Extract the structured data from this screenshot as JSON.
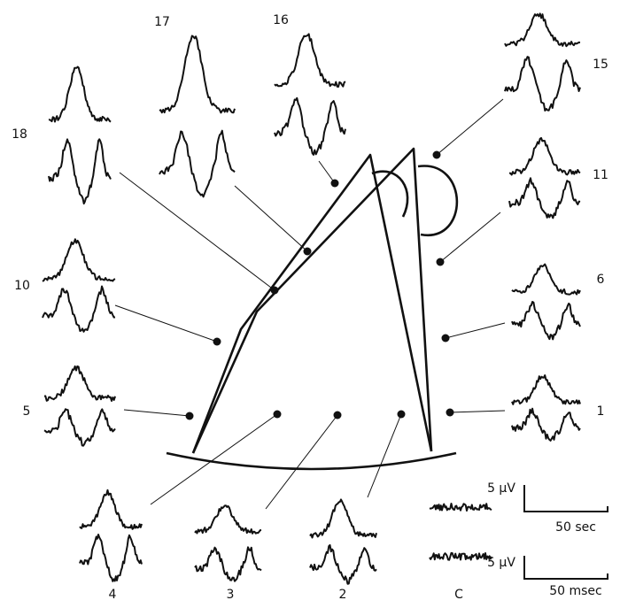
{
  "figure": {
    "sites": [
      {
        "label": "18"
      },
      {
        "label": "17"
      },
      {
        "label": "16"
      },
      {
        "label": "15"
      },
      {
        "label": "11"
      },
      {
        "label": "6"
      },
      {
        "label": "1"
      },
      {
        "label": "10"
      },
      {
        "label": "5"
      },
      {
        "label": "4"
      },
      {
        "label": "3"
      },
      {
        "label": "2"
      },
      {
        "label": "C"
      }
    ],
    "scale_bars": [
      {
        "amplitude": "5 μV",
        "time": "50 sec"
      },
      {
        "amplitude": "5 μV",
        "time": "50 msec"
      }
    ]
  }
}
